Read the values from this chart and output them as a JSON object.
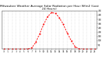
{
  "title": "Milwaukee Weather Average Solar Radiation per Hour W/m2 (Last 24 Hours)",
  "x_values": [
    0,
    1,
    2,
    3,
    4,
    5,
    6,
    7,
    8,
    9,
    10,
    11,
    12,
    13,
    14,
    15,
    16,
    17,
    18,
    19,
    20,
    21,
    22,
    23
  ],
  "y_values": [
    0,
    0,
    0,
    0,
    0,
    0,
    2,
    15,
    80,
    180,
    290,
    380,
    430,
    420,
    370,
    290,
    190,
    100,
    30,
    5,
    0,
    0,
    0,
    0
  ],
  "line_color": "#ff0000",
  "bg_color": "#ffffff",
  "plot_bg": "#ffffff",
  "grid_color": "#bbbbbb",
  "ylim": [
    0,
    450
  ],
  "xlim": [
    -0.5,
    23.5
  ],
  "ytick_values": [
    50,
    100,
    150,
    200,
    250,
    300,
    350,
    400,
    450
  ],
  "xtick_values": [
    0,
    1,
    2,
    3,
    4,
    5,
    6,
    7,
    8,
    9,
    10,
    11,
    12,
    13,
    14,
    15,
    16,
    17,
    18,
    19,
    20,
    21,
    22,
    23
  ]
}
